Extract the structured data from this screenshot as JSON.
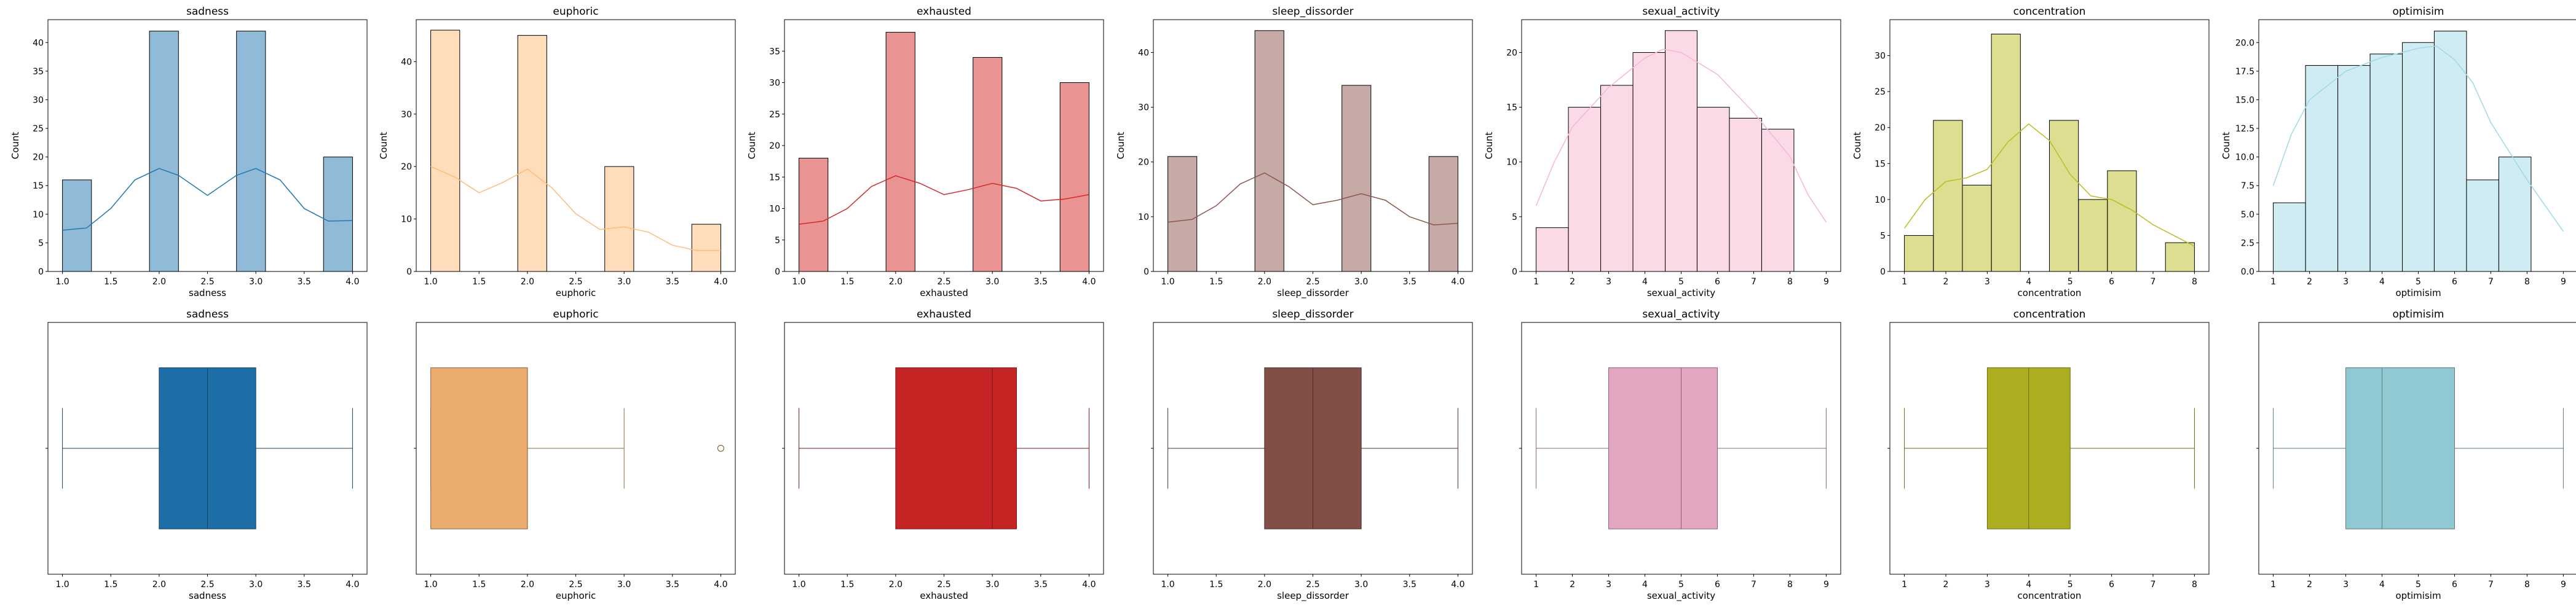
{
  "colors": {
    "sadness": "#1f77b4",
    "euphoric": "#ffbb78",
    "exhausted": "#d62728",
    "sleep_dissorder": "#8c564b",
    "sexual_activity": "#f7b6d2",
    "concentration": "#bcbd22",
    "optimisim": "#9edae5"
  },
  "chart_data": [
    {
      "type": "bar",
      "title": "sadness",
      "xlabel": "sadness",
      "ylabel": "Count",
      "color_key": "sadness",
      "xlim": [
        0.85,
        4.15
      ],
      "ylim": [
        0,
        44
      ],
      "xticks": [
        1.0,
        1.5,
        2.0,
        2.5,
        3.0,
        3.5,
        4.0
      ],
      "xticklabels": [
        "1.0",
        "1.5",
        "2.0",
        "2.5",
        "3.0",
        "3.5",
        "4.0"
      ],
      "yticks": [
        0,
        5,
        10,
        15,
        20,
        25,
        30,
        35,
        40
      ],
      "yticklabels": [
        "0",
        "5",
        "10",
        "15",
        "20",
        "25",
        "30",
        "35",
        "40"
      ],
      "bins": [
        [
          1.0,
          1.3,
          16
        ],
        [
          1.6,
          1.9,
          0
        ],
        [
          1.9,
          2.2,
          42
        ],
        [
          2.2,
          2.5,
          0
        ],
        [
          2.5,
          2.8,
          0
        ],
        [
          2.8,
          3.1,
          42
        ],
        [
          3.1,
          3.4,
          0
        ],
        [
          3.7,
          4.0,
          20
        ]
      ],
      "kde": [
        [
          1.0,
          7.2
        ],
        [
          1.25,
          7.6
        ],
        [
          1.5,
          11
        ],
        [
          1.75,
          16
        ],
        [
          2.0,
          18
        ],
        [
          2.2,
          16.8
        ],
        [
          2.5,
          13.3
        ],
        [
          2.8,
          16.8
        ],
        [
          3.0,
          18
        ],
        [
          3.25,
          16
        ],
        [
          3.5,
          11
        ],
        [
          3.75,
          8.8
        ],
        [
          4.0,
          8.9
        ]
      ]
    },
    {
      "type": "bar",
      "title": "euphoric",
      "xlabel": "euphoric",
      "ylabel": "Count",
      "color_key": "euphoric",
      "xlim": [
        0.85,
        4.15
      ],
      "ylim": [
        0,
        48
      ],
      "xticks": [
        1.0,
        1.5,
        2.0,
        2.5,
        3.0,
        3.5,
        4.0
      ],
      "xticklabels": [
        "1.0",
        "1.5",
        "2.0",
        "2.5",
        "3.0",
        "3.5",
        "4.0"
      ],
      "yticks": [
        0,
        10,
        20,
        30,
        40
      ],
      "yticklabels": [
        "0",
        "10",
        "20",
        "30",
        "40"
      ],
      "bins": [
        [
          1.0,
          1.3,
          46
        ],
        [
          1.3,
          1.6,
          0
        ],
        [
          1.6,
          1.9,
          0
        ],
        [
          1.9,
          2.2,
          45
        ],
        [
          2.2,
          2.5,
          0
        ],
        [
          2.5,
          2.8,
          0
        ],
        [
          2.8,
          3.1,
          20
        ],
        [
          3.1,
          3.4,
          0
        ],
        [
          3.4,
          3.7,
          0
        ],
        [
          3.7,
          4.0,
          9
        ]
      ],
      "kde": [
        [
          1.0,
          20
        ],
        [
          1.25,
          18
        ],
        [
          1.5,
          15
        ],
        [
          1.75,
          17
        ],
        [
          2.0,
          19.5
        ],
        [
          2.25,
          16
        ],
        [
          2.5,
          11
        ],
        [
          2.75,
          8
        ],
        [
          3.0,
          8.5
        ],
        [
          3.25,
          7.5
        ],
        [
          3.5,
          5
        ],
        [
          3.75,
          4
        ],
        [
          4.0,
          4
        ]
      ]
    },
    {
      "type": "bar",
      "title": "exhausted",
      "xlabel": "exhausted",
      "ylabel": "Count",
      "color_key": "exhausted",
      "xlim": [
        0.85,
        4.15
      ],
      "ylim": [
        0,
        40
      ],
      "xticks": [
        1.0,
        1.5,
        2.0,
        2.5,
        3.0,
        3.5,
        4.0
      ],
      "xticklabels": [
        "1.0",
        "1.5",
        "2.0",
        "2.5",
        "3.0",
        "3.5",
        "4.0"
      ],
      "yticks": [
        0,
        5,
        10,
        15,
        20,
        25,
        30,
        35
      ],
      "yticklabels": [
        "0",
        "5",
        "10",
        "15",
        "20",
        "25",
        "30",
        "35"
      ],
      "bins": [
        [
          1.0,
          1.3,
          18
        ],
        [
          1.3,
          1.6,
          0
        ],
        [
          1.6,
          1.9,
          0
        ],
        [
          1.9,
          2.2,
          38
        ],
        [
          2.2,
          2.5,
          0
        ],
        [
          2.5,
          2.8,
          0
        ],
        [
          2.8,
          3.1,
          34
        ],
        [
          3.1,
          3.4,
          0
        ],
        [
          3.4,
          3.7,
          0
        ],
        [
          3.7,
          4.0,
          30
        ]
      ],
      "kde": [
        [
          1.0,
          7.5
        ],
        [
          1.25,
          8
        ],
        [
          1.5,
          10
        ],
        [
          1.75,
          13.5
        ],
        [
          2.0,
          15.2
        ],
        [
          2.25,
          14
        ],
        [
          2.5,
          12.2
        ],
        [
          2.75,
          13
        ],
        [
          3.0,
          14
        ],
        [
          3.25,
          13.2
        ],
        [
          3.5,
          11.2
        ],
        [
          3.75,
          11.5
        ],
        [
          4.0,
          12.2
        ]
      ]
    },
    {
      "type": "bar",
      "title": "sleep_dissorder",
      "xlabel": "sleep_dissorder",
      "ylabel": "Count",
      "color_key": "sleep_dissorder",
      "xlim": [
        0.85,
        4.15
      ],
      "ylim": [
        0,
        46
      ],
      "xticks": [
        1.0,
        1.5,
        2.0,
        2.5,
        3.0,
        3.5,
        4.0
      ],
      "xticklabels": [
        "1.0",
        "1.5",
        "2.0",
        "2.5",
        "3.0",
        "3.5",
        "4.0"
      ],
      "yticks": [
        0,
        10,
        20,
        30,
        40
      ],
      "yticklabels": [
        "0",
        "10",
        "20",
        "30",
        "40"
      ],
      "bins": [
        [
          1.0,
          1.3,
          21
        ],
        [
          1.3,
          1.6,
          0
        ],
        [
          1.6,
          1.9,
          0
        ],
        [
          1.9,
          2.2,
          44
        ],
        [
          2.2,
          2.5,
          0
        ],
        [
          2.5,
          2.8,
          0
        ],
        [
          2.8,
          3.1,
          34
        ],
        [
          3.1,
          3.4,
          0
        ],
        [
          3.4,
          3.7,
          0
        ],
        [
          3.7,
          4.0,
          21
        ]
      ],
      "kde": [
        [
          1.0,
          9
        ],
        [
          1.25,
          9.5
        ],
        [
          1.5,
          12
        ],
        [
          1.75,
          16
        ],
        [
          2.0,
          18
        ],
        [
          2.25,
          15.5
        ],
        [
          2.5,
          12.2
        ],
        [
          2.75,
          13
        ],
        [
          3.0,
          14.2
        ],
        [
          3.25,
          13
        ],
        [
          3.5,
          10
        ],
        [
          3.75,
          8.5
        ],
        [
          4.0,
          8.8
        ]
      ]
    },
    {
      "type": "bar",
      "title": "sexual_activity",
      "xlabel": "sexual_activity",
      "ylabel": "Count",
      "color_key": "sexual_activity",
      "xlim": [
        0.6,
        9.4
      ],
      "ylim": [
        0,
        23
      ],
      "xticks": [
        1,
        2,
        3,
        4,
        5,
        6,
        7,
        8,
        9
      ],
      "xticklabels": [
        "1",
        "2",
        "3",
        "4",
        "5",
        "6",
        "7",
        "8",
        "9"
      ],
      "yticks": [
        0,
        5,
        10,
        15,
        20
      ],
      "yticklabels": [
        "0",
        "5",
        "10",
        "15",
        "20"
      ],
      "bins": [
        [
          1.0,
          1.89,
          4
        ],
        [
          1.89,
          2.78,
          15
        ],
        [
          2.78,
          3.67,
          17
        ],
        [
          3.67,
          4.56,
          20
        ],
        [
          4.56,
          5.44,
          22
        ],
        [
          5.44,
          6.33,
          15
        ],
        [
          6.33,
          7.22,
          14
        ],
        [
          7.22,
          8.11,
          13
        ]
      ],
      "kde": [
        [
          1.0,
          6
        ],
        [
          1.5,
          10
        ],
        [
          2.0,
          13.2
        ],
        [
          3.0,
          16.8
        ],
        [
          4.0,
          19.5
        ],
        [
          4.5,
          20.3
        ],
        [
          5.0,
          20
        ],
        [
          6.0,
          18
        ],
        [
          7.0,
          14.5
        ],
        [
          8.0,
          10.5
        ],
        [
          8.5,
          7
        ],
        [
          9.0,
          4.5
        ]
      ]
    },
    {
      "type": "bar",
      "title": "concentration",
      "xlabel": "concentration",
      "ylabel": "Count",
      "color_key": "concentration",
      "xlim": [
        0.65,
        8.35
      ],
      "ylim": [
        0,
        35
      ],
      "xticks": [
        1,
        2,
        3,
        4,
        5,
        6,
        7,
        8
      ],
      "xticklabels": [
        "1",
        "2",
        "3",
        "4",
        "5",
        "6",
        "7",
        "8"
      ],
      "yticks": [
        0,
        5,
        10,
        15,
        20,
        25,
        30
      ],
      "yticklabels": [
        "0",
        "5",
        "10",
        "15",
        "20",
        "25",
        "30"
      ],
      "bins": [
        [
          1.0,
          1.7,
          5
        ],
        [
          1.7,
          2.4,
          21
        ],
        [
          2.4,
          3.1,
          12
        ],
        [
          3.1,
          3.8,
          33
        ],
        [
          3.8,
          4.5,
          0
        ],
        [
          4.5,
          5.2,
          21
        ],
        [
          5.2,
          5.9,
          10
        ],
        [
          5.9,
          6.6,
          14
        ],
        [
          6.6,
          7.3,
          0
        ],
        [
          7.3,
          8.0,
          4
        ]
      ],
      "kde": [
        [
          1.0,
          6
        ],
        [
          1.5,
          10
        ],
        [
          2.0,
          12.5
        ],
        [
          2.5,
          13
        ],
        [
          3.0,
          14.2
        ],
        [
          3.5,
          18
        ],
        [
          4.0,
          20.5
        ],
        [
          4.5,
          18.2
        ],
        [
          5.0,
          13.5
        ],
        [
          5.5,
          10.5
        ],
        [
          6.0,
          10
        ],
        [
          6.5,
          8.5
        ],
        [
          7.0,
          6.5
        ],
        [
          7.5,
          5
        ],
        [
          8.0,
          3.5
        ]
      ]
    },
    {
      "type": "bar",
      "title": "optimisim",
      "xlabel": "optimisim",
      "ylabel": "Count",
      "color_key": "optimisim",
      "xlim": [
        0.6,
        9.4
      ],
      "ylim": [
        0,
        22
      ],
      "xticks": [
        1,
        2,
        3,
        4,
        5,
        6,
        7,
        8,
        9
      ],
      "xticklabels": [
        "1",
        "2",
        "3",
        "4",
        "5",
        "6",
        "7",
        "8",
        "9"
      ],
      "yticks": [
        0,
        2.5,
        5,
        7.5,
        10,
        12.5,
        15,
        17.5,
        20
      ],
      "yticklabels": [
        "0.0",
        "2.5",
        "5.0",
        "7.5",
        "10.0",
        "12.5",
        "15.0",
        "17.5",
        "20.0"
      ],
      "bins": [
        [
          1.0,
          1.89,
          6
        ],
        [
          1.89,
          2.78,
          18
        ],
        [
          2.78,
          3.67,
          18
        ],
        [
          3.67,
          4.56,
          19
        ],
        [
          4.56,
          5.44,
          20
        ],
        [
          5.44,
          6.33,
          21
        ],
        [
          6.33,
          7.22,
          8
        ],
        [
          7.22,
          8.11,
          10
        ]
      ],
      "kde": [
        [
          1.0,
          7.5
        ],
        [
          1.5,
          12
        ],
        [
          2.0,
          15
        ],
        [
          3.0,
          17.5
        ],
        [
          4.0,
          18.7
        ],
        [
          5.0,
          19.5
        ],
        [
          5.5,
          19.7
        ],
        [
          6.0,
          18.5
        ],
        [
          6.5,
          16.5
        ],
        [
          7.0,
          13
        ],
        [
          8.0,
          8
        ],
        [
          9.0,
          3.5
        ]
      ]
    },
    {
      "type": "box",
      "title": "sadness",
      "xlabel": "sadness",
      "color_key": "sadness",
      "xlim": [
        0.85,
        4.15
      ],
      "xticks": [
        1.0,
        1.5,
        2.0,
        2.5,
        3.0,
        3.5,
        4.0
      ],
      "xticklabels": [
        "1.0",
        "1.5",
        "2.0",
        "2.5",
        "3.0",
        "3.5",
        "4.0"
      ],
      "whisker_low": 1,
      "q1": 2,
      "median": 2.5,
      "q3": 3,
      "whisker_high": 4,
      "outliers": []
    },
    {
      "type": "box",
      "title": "euphoric",
      "xlabel": "euphoric",
      "color_key": "euphoric",
      "xlim": [
        0.85,
        4.15
      ],
      "xticks": [
        1.0,
        1.5,
        2.0,
        2.5,
        3.0,
        3.5,
        4.0
      ],
      "xticklabels": [
        "1.0",
        "1.5",
        "2.0",
        "2.5",
        "3.0",
        "3.5",
        "4.0"
      ],
      "whisker_low": 1,
      "q1": 1,
      "median": 2,
      "q3": 2,
      "whisker_high": 3,
      "outliers": [
        4
      ]
    },
    {
      "type": "box",
      "title": "exhausted",
      "xlabel": "exhausted",
      "color_key": "exhausted",
      "xlim": [
        0.85,
        4.15
      ],
      "xticks": [
        1.0,
        1.5,
        2.0,
        2.5,
        3.0,
        3.5,
        4.0
      ],
      "xticklabels": [
        "1.0",
        "1.5",
        "2.0",
        "2.5",
        "3.0",
        "3.5",
        "4.0"
      ],
      "whisker_low": 1,
      "q1": 2,
      "median": 3,
      "q3": 3.25,
      "whisker_high": 4,
      "outliers": []
    },
    {
      "type": "box",
      "title": "sleep_dissorder",
      "xlabel": "sleep_dissorder",
      "color_key": "sleep_dissorder",
      "xlim": [
        0.85,
        4.15
      ],
      "xticks": [
        1.0,
        1.5,
        2.0,
        2.5,
        3.0,
        3.5,
        4.0
      ],
      "xticklabels": [
        "1.0",
        "1.5",
        "2.0",
        "2.5",
        "3.0",
        "3.5",
        "4.0"
      ],
      "whisker_low": 1,
      "q1": 2,
      "median": 2.5,
      "q3": 3,
      "whisker_high": 4,
      "outliers": []
    },
    {
      "type": "box",
      "title": "sexual_activity",
      "xlabel": "sexual_activity",
      "color_key": "sexual_activity",
      "xlim": [
        0.6,
        9.4
      ],
      "xticks": [
        1,
        2,
        3,
        4,
        5,
        6,
        7,
        8,
        9
      ],
      "xticklabels": [
        "1",
        "2",
        "3",
        "4",
        "5",
        "6",
        "7",
        "8",
        "9"
      ],
      "whisker_low": 1,
      "q1": 3,
      "median": 5,
      "q3": 6,
      "whisker_high": 9,
      "outliers": []
    },
    {
      "type": "box",
      "title": "concentration",
      "xlabel": "concentration",
      "color_key": "concentration",
      "xlim": [
        0.65,
        8.35
      ],
      "xticks": [
        1,
        2,
        3,
        4,
        5,
        6,
        7,
        8
      ],
      "xticklabels": [
        "1",
        "2",
        "3",
        "4",
        "5",
        "6",
        "7",
        "8"
      ],
      "whisker_low": 1,
      "q1": 3,
      "median": 4,
      "q3": 5,
      "whisker_high": 8,
      "outliers": []
    },
    {
      "type": "box",
      "title": "optimisim",
      "xlabel": "optimisim",
      "color_key": "optimisim",
      "xlim": [
        0.6,
        9.4
      ],
      "xticks": [
        1,
        2,
        3,
        4,
        5,
        6,
        7,
        8,
        9
      ],
      "xticklabels": [
        "1",
        "2",
        "3",
        "4",
        "5",
        "6",
        "7",
        "8",
        "9"
      ],
      "whisker_low": 1,
      "q1": 3,
      "median": 4,
      "q3": 6,
      "whisker_high": 9,
      "outliers": []
    }
  ]
}
